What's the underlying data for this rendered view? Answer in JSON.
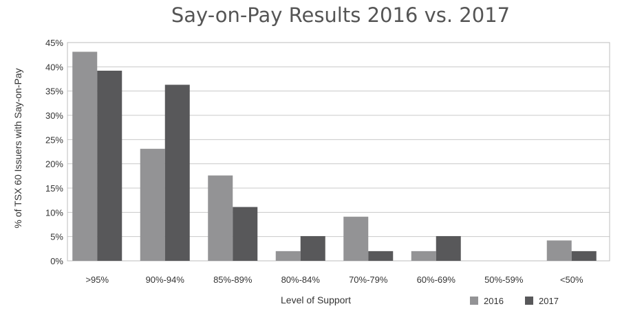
{
  "chart_data": {
    "type": "bar",
    "title": "Say-on-Pay Results 2016 vs. 2017",
    "xlabel": "Level of Support",
    "ylabel": "% of TSX 60 Issuers with Say-on-Pay",
    "categories": [
      ">95%",
      "90%-94%",
      "85%-89%",
      "80%-84%",
      "70%-79%",
      "60%-69%",
      "50%-59%",
      "<50%"
    ],
    "series": [
      {
        "name": "2016",
        "color": "#939395",
        "values": [
          43.1,
          23.1,
          17.6,
          2.0,
          9.1,
          2.0,
          0,
          4.2
        ]
      },
      {
        "name": "2017",
        "color": "#58585a",
        "values": [
          39.2,
          36.3,
          11.1,
          5.1,
          2.0,
          5.1,
          0,
          2.0
        ]
      }
    ],
    "ylim": [
      0,
      45
    ],
    "yticks": [
      0,
      5,
      10,
      15,
      20,
      25,
      30,
      35,
      40,
      45
    ],
    "ytick_labels": [
      "0%",
      "5%",
      "10%",
      "15%",
      "20%",
      "25%",
      "30%",
      "35%",
      "40%",
      "45%"
    ],
    "grid": true,
    "legend": "bottom-right"
  }
}
